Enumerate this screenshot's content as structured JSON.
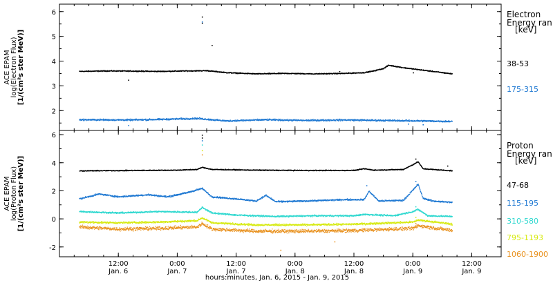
{
  "colors": {
    "black": "#000000",
    "blue": "#1e78d2",
    "cyan": "#2ed8cf",
    "yellow": "#d6ea10",
    "orange": "#e8901c"
  },
  "x_axis": {
    "xlabel": "hours:minutes, Jan. 6, 2015 - Jan. 9, 2015",
    "ticks": [
      {
        "hours": 12,
        "time": "12:00",
        "date": "Jan. 6"
      },
      {
        "hours": 24,
        "time": "0:00",
        "date": "Jan. 7"
      },
      {
        "hours": 36,
        "time": "12:00",
        "date": "Jan. 7"
      },
      {
        "hours": 48,
        "time": "0:00",
        "date": "Jan. 8"
      },
      {
        "hours": 60,
        "time": "12:00",
        "date": "Jan. 8"
      },
      {
        "hours": 72,
        "time": "0:00",
        "date": "Jan. 9"
      },
      {
        "hours": 84,
        "time": "12:00",
        "date": "Jan. 9"
      }
    ]
  },
  "chart_data": [
    {
      "type": "scatter",
      "ylabel_lines": [
        "ACE EPAM",
        "log(Electron Flux)",
        "[1/(cm²s ster MeV)]"
      ],
      "ylim": [
        1.2,
        6.3
      ],
      "yticks": [
        2,
        3,
        4,
        5,
        6
      ],
      "legend_title": [
        "Electron",
        "Energy ran"
      ],
      "legend_unit": "[keV]",
      "series": [
        {
          "name": "38-53",
          "color": "black",
          "jitter": 0.03,
          "points": [
            [
              4,
              3.6
            ],
            [
              10,
              3.62
            ],
            [
              16,
              3.61
            ],
            [
              20,
              3.6
            ],
            [
              26,
              3.62
            ],
            [
              30,
              3.63
            ],
            [
              34,
              3.55
            ],
            [
              40,
              3.5
            ],
            [
              46,
              3.52
            ],
            [
              52,
              3.5
            ],
            [
              58,
              3.52
            ],
            [
              62,
              3.55
            ],
            [
              64,
              3.62
            ],
            [
              66,
              3.72
            ],
            [
              67,
              3.85
            ],
            [
              70,
              3.75
            ],
            [
              74,
              3.65
            ],
            [
              78,
              3.55
            ],
            [
              80,
              3.5
            ]
          ],
          "spikes": [
            [
              29,
              5.8
            ],
            [
              29,
              5.55
            ],
            [
              31,
              4.65
            ],
            [
              14,
              3.25
            ],
            [
              57,
              3.6
            ],
            [
              72,
              3.55
            ]
          ]
        },
        {
          "name": "175-315",
          "color": "blue",
          "jitter": 0.05,
          "points": [
            [
              4,
              1.65
            ],
            [
              14,
              1.64
            ],
            [
              20,
              1.66
            ],
            [
              28,
              1.7
            ],
            [
              34,
              1.6
            ],
            [
              42,
              1.65
            ],
            [
              50,
              1.62
            ],
            [
              58,
              1.64
            ],
            [
              66,
              1.62
            ],
            [
              74,
              1.6
            ],
            [
              80,
              1.58
            ]
          ],
          "spikes": [
            [
              14,
              1.42
            ],
            [
              29,
              5.6
            ],
            [
              74,
              1.45
            ],
            [
              71,
              1.48
            ]
          ]
        }
      ]
    },
    {
      "type": "scatter",
      "ylabel_lines": [
        "ACE EPAM",
        "log(Proton Flux)",
        "[1/(cm²s ster MeV)]"
      ],
      "ylim": [
        -2.7,
        6.3
      ],
      "yticks": [
        -2,
        0,
        2,
        4,
        6
      ],
      "legend_title": [
        "Proton",
        "Energy ran"
      ],
      "legend_unit": "[keV]",
      "series": [
        {
          "name": "47-68",
          "color": "black",
          "jitter": 0.05,
          "points": [
            [
              4,
              3.45
            ],
            [
              16,
              3.48
            ],
            [
              24,
              3.5
            ],
            [
              28,
              3.55
            ],
            [
              29,
              3.7
            ],
            [
              31,
              3.55
            ],
            [
              40,
              3.5
            ],
            [
              50,
              3.48
            ],
            [
              60,
              3.48
            ],
            [
              62,
              3.6
            ],
            [
              64,
              3.5
            ],
            [
              70,
              3.55
            ],
            [
              72,
              3.9
            ],
            [
              73,
              4.1
            ],
            [
              74,
              3.6
            ],
            [
              80,
              3.45
            ]
          ],
          "spikes": [
            [
              29,
              6.0
            ],
            [
              29,
              5.8
            ],
            [
              72.5,
              4.3
            ],
            [
              79,
              3.8
            ]
          ]
        },
        {
          "name": "115-195",
          "color": "blue",
          "jitter": 0.08,
          "points": [
            [
              4,
              1.45
            ],
            [
              8,
              1.8
            ],
            [
              12,
              1.6
            ],
            [
              18,
              1.75
            ],
            [
              22,
              1.6
            ],
            [
              26,
              1.9
            ],
            [
              29,
              2.2
            ],
            [
              31,
              1.6
            ],
            [
              36,
              1.45
            ],
            [
              40,
              1.3
            ],
            [
              42,
              1.7
            ],
            [
              44,
              1.25
            ],
            [
              50,
              1.3
            ],
            [
              58,
              1.4
            ],
            [
              62,
              1.4
            ],
            [
              63,
              2.0
            ],
            [
              65,
              1.3
            ],
            [
              70,
              1.35
            ],
            [
              72,
              2.1
            ],
            [
              73,
              2.5
            ],
            [
              74,
              1.5
            ],
            [
              76,
              1.3
            ],
            [
              80,
              1.2
            ]
          ],
          "spikes": [
            [
              29,
              5.6
            ],
            [
              72.5,
              2.7
            ],
            [
              62.5,
              2.4
            ]
          ]
        },
        {
          "name": "310-580",
          "color": "cyan",
          "jitter": 0.08,
          "points": [
            [
              4,
              0.55
            ],
            [
              12,
              0.45
            ],
            [
              20,
              0.55
            ],
            [
              28,
              0.5
            ],
            [
              29,
              0.85
            ],
            [
              31,
              0.45
            ],
            [
              36,
              0.3
            ],
            [
              44,
              0.2
            ],
            [
              52,
              0.25
            ],
            [
              60,
              0.25
            ],
            [
              62,
              0.35
            ],
            [
              68,
              0.25
            ],
            [
              72,
              0.55
            ],
            [
              73,
              0.7
            ],
            [
              75,
              0.25
            ],
            [
              80,
              0.2
            ]
          ],
          "spikes": [
            [
              29,
              5.3
            ],
            [
              72.5,
              0.9
            ]
          ]
        },
        {
          "name": "795-1193",
          "color": "yellow",
          "jitter": 0.1,
          "points": [
            [
              4,
              -0.2
            ],
            [
              12,
              -0.25
            ],
            [
              20,
              -0.2
            ],
            [
              28,
              -0.1
            ],
            [
              29,
              0.1
            ],
            [
              31,
              -0.25
            ],
            [
              40,
              -0.4
            ],
            [
              50,
              -0.4
            ],
            [
              60,
              -0.35
            ],
            [
              72,
              -0.2
            ],
            [
              73,
              -0.05
            ],
            [
              80,
              -0.35
            ]
          ],
          "spikes": [
            [
              29,
              4.9
            ],
            [
              72.5,
              0.15
            ]
          ]
        },
        {
          "name": "1060-1900",
          "color": "orange",
          "jitter": 0.18,
          "points": [
            [
              4,
              -0.55
            ],
            [
              12,
              -0.7
            ],
            [
              20,
              -0.65
            ],
            [
              28,
              -0.55
            ],
            [
              29,
              -0.3
            ],
            [
              31,
              -0.7
            ],
            [
              40,
              -0.85
            ],
            [
              50,
              -0.85
            ],
            [
              60,
              -0.8
            ],
            [
              72,
              -0.65
            ],
            [
              73,
              -0.45
            ],
            [
              80,
              -0.8
            ]
          ],
          "spikes": [
            [
              29,
              4.6
            ],
            [
              45,
              -2.2
            ],
            [
              72.5,
              -0.3
            ],
            [
              56,
              -1.6
            ]
          ]
        }
      ]
    }
  ]
}
